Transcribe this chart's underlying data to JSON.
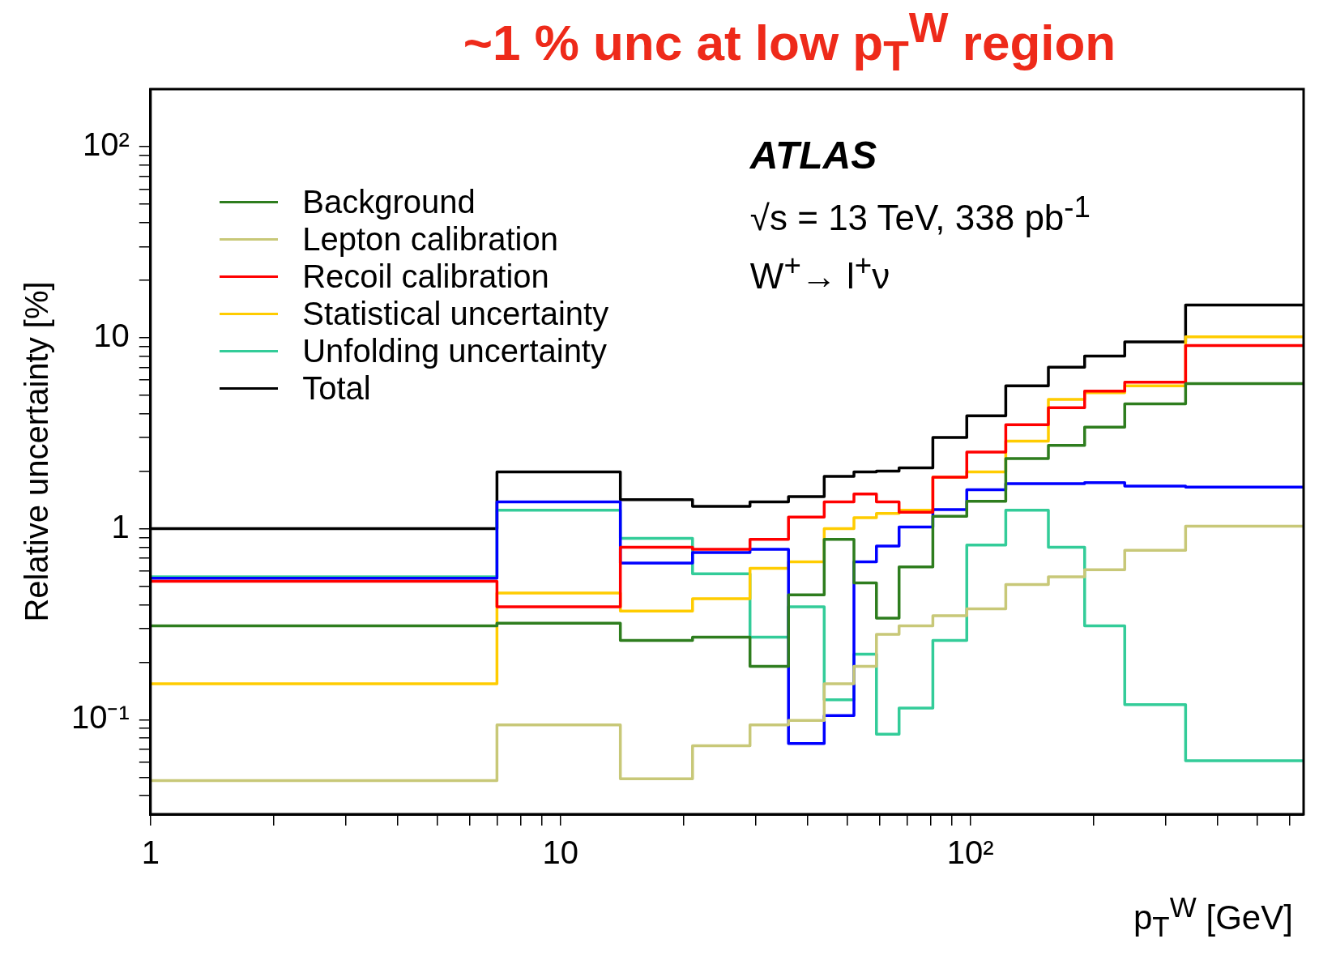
{
  "chart_data": {
    "type": "histogram",
    "title": "~1 % unc at low p$_{T}$$^{W}$ region",
    "xlabel": "p$_{T}$$^{W}$ [GeV]",
    "ylabel": "Relative uncertainty [%]",
    "annotations": [
      "ATLAS",
      "√s = 13 TeV, 338 pb$^{-1}$",
      "W$^{+}$→ l$^{+}$ν"
    ],
    "bins": [
      1,
      7,
      14,
      21,
      29,
      36,
      44,
      52,
      59,
      67,
      81,
      98,
      122,
      155,
      190,
      238,
      335,
      650
    ],
    "series": [
      {
        "name": "Background",
        "color": "#2e7d1e",
        "values": [
          0.31,
          0.32,
          0.26,
          0.27,
          0.19,
          0.45,
          0.88,
          0.52,
          0.34,
          0.63,
          1.16,
          1.39,
          2.33,
          2.73,
          3.4,
          4.5,
          5.75
        ]
      },
      {
        "name": "Lepton calibration",
        "color": "#c8c878",
        "values": [
          0.048,
          0.094,
          0.049,
          0.073,
          0.094,
          0.099,
          0.154,
          0.19,
          0.28,
          0.31,
          0.35,
          0.38,
          0.51,
          0.56,
          0.61,
          0.77,
          1.03
        ]
      },
      {
        "name": "Recoil calibration",
        "color": "#ff0000",
        "values": [
          0.53,
          0.39,
          0.8,
          0.78,
          0.88,
          1.15,
          1.38,
          1.52,
          1.38,
          1.22,
          1.86,
          2.52,
          3.5,
          4.3,
          5.25,
          5.85,
          9.1
        ]
      },
      {
        "color": "#0000ff",
        "values": [
          0.55,
          1.38,
          0.66,
          0.75,
          0.78,
          0.075,
          0.105,
          0.67,
          0.81,
          1.02,
          1.26,
          1.6,
          1.72,
          1.72,
          1.74,
          1.67,
          1.65
        ]
      },
      {
        "name": "Statistical uncertainty",
        "color": "#ffcc00",
        "values": [
          0.154,
          0.46,
          0.37,
          0.43,
          0.62,
          0.67,
          1.0,
          1.14,
          1.2,
          1.25,
          1.86,
          1.98,
          2.87,
          4.75,
          5.15,
          5.6,
          10.1
        ]
      },
      {
        "name": "Unfolding uncertainty",
        "color": "#33cc99",
        "values": [
          0.56,
          1.25,
          0.89,
          0.58,
          0.27,
          0.39,
          0.127,
          0.22,
          0.084,
          0.115,
          0.26,
          0.82,
          1.25,
          0.8,
          0.31,
          0.12,
          0.061
        ]
      },
      {
        "name": "Total",
        "color": "#000000",
        "values": [
          1.0,
          1.98,
          1.42,
          1.31,
          1.38,
          1.47,
          1.88,
          1.98,
          2.0,
          2.08,
          3.0,
          3.9,
          5.6,
          7.0,
          8.0,
          9.5,
          14.8
        ]
      }
    ],
    "log": "xy",
    "xlim": [
      1,
      650
    ],
    "ylim": [
      0.032,
      200
    ],
    "legend": "top left",
    "xticks": [
      1,
      {
        "value": 2,
        "label": null
      },
      {
        "value": 3,
        "label": null
      },
      {
        "value": 4,
        "label": null
      },
      {
        "value": 5,
        "label": null
      },
      {
        "value": 6,
        "label": null
      },
      {
        "value": 7,
        "label": null
      },
      {
        "value": 8,
        "label": null
      },
      {
        "value": 9,
        "label": null
      },
      10,
      {
        "value": 20,
        "label": null
      },
      {
        "value": 30,
        "label": null
      },
      {
        "value": 40,
        "label": null
      },
      {
        "value": 50,
        "label": null
      },
      {
        "value": 60,
        "label": null
      },
      {
        "value": 70,
        "label": null
      },
      {
        "value": 80,
        "label": null
      },
      {
        "value": 90,
        "label": null
      },
      {
        "value": 100,
        "label": "10²"
      },
      {
        "value": 200,
        "label": null
      },
      {
        "value": 300,
        "label": null
      },
      {
        "value": 400,
        "label": null
      },
      {
        "value": 500,
        "label": null
      },
      {
        "value": 600,
        "label": null
      }
    ],
    "yticks": [
      {
        "value": 0.04,
        "label": null
      },
      {
        "value": 0.05,
        "label": null
      },
      {
        "value": 0.06,
        "label": null
      },
      {
        "value": 0.07,
        "label": null
      },
      {
        "value": 0.08,
        "label": null
      },
      {
        "value": 0.09,
        "label": null
      },
      {
        "value": 0.1,
        "label": "10⁻¹"
      },
      {
        "value": 0.2,
        "label": null
      },
      {
        "value": 0.3,
        "label": null
      },
      {
        "value": 0.4,
        "label": null
      },
      {
        "value": 0.5,
        "label": null
      },
      {
        "value": 0.6,
        "label": null
      },
      {
        "value": 0.7,
        "label": null
      },
      {
        "value": 0.8,
        "label": null
      },
      {
        "value": 0.9,
        "label": null
      },
      1,
      {
        "value": 2,
        "label": null
      },
      {
        "value": 3,
        "label": null
      },
      {
        "value": 4,
        "label": null
      },
      {
        "value": 5,
        "label": null
      },
      {
        "value": 6,
        "label": null
      },
      {
        "value": 7,
        "label": null
      },
      {
        "value": 8,
        "label": null
      },
      {
        "value": 9,
        "label": null
      },
      10,
      {
        "value": 20,
        "label": null
      },
      {
        "value": 30,
        "label": null
      },
      {
        "value": 40,
        "label": null
      },
      {
        "value": 50,
        "label": null
      },
      {
        "value": 60,
        "label": null
      },
      {
        "value": 70,
        "label": null
      },
      {
        "value": 80,
        "label": null
      },
      {
        "value": 90,
        "label": null
      },
      {
        "value": 100,
        "label": "10²"
      }
    ]
  }
}
